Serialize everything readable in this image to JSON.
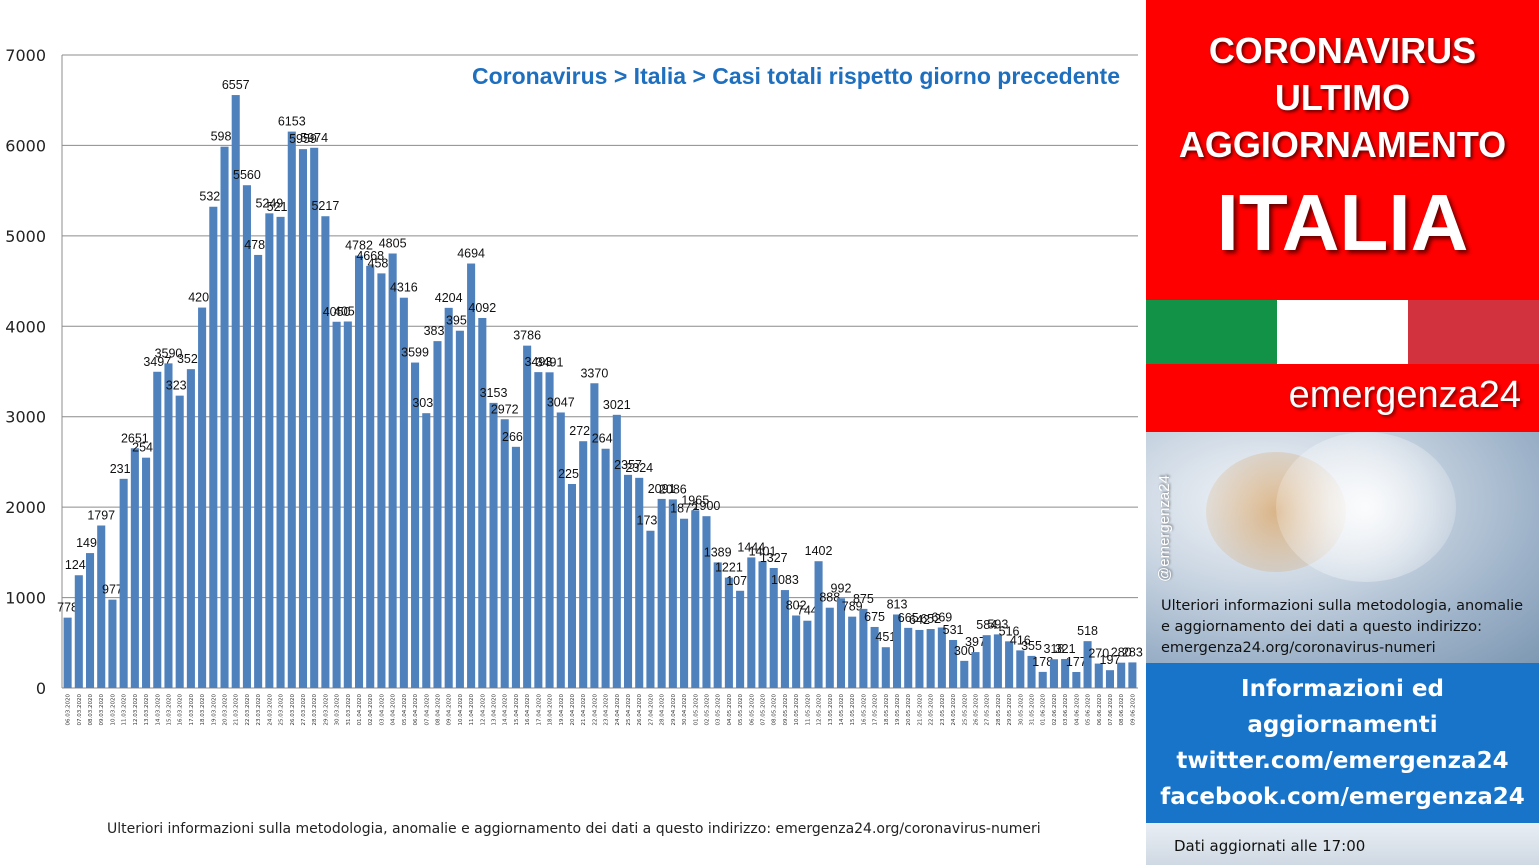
{
  "chart_data": {
    "type": "bar",
    "title": "Coronavirus > Italia > Casi totali rispetto giorno precedente",
    "ylim": [
      0,
      7000
    ],
    "yticks": [
      0,
      1000,
      2000,
      3000,
      4000,
      5000,
      6000,
      7000
    ],
    "grid": true,
    "color": "#4f81bd",
    "categories": [
      "06.03.2020",
      "07.03.2020",
      "08.03.2020",
      "09.03.2020",
      "10.03.2020",
      "11.03.2020",
      "12.03.2020",
      "13.03.2020",
      "14.03.2020",
      "15.03.2020",
      "16.03.2020",
      "17.03.2020",
      "18.03.2020",
      "19.03.2020",
      "20.03.2020",
      "21.03.2020",
      "22.03.2020",
      "23.03.2020",
      "24.03.2020",
      "25.03.2020",
      "26.03.2020",
      "27.03.2020",
      "28.03.2020",
      "29.03.2020",
      "30.03.2020",
      "31.03.2020",
      "01.04.2020",
      "02.04.2020",
      "03.04.2020",
      "04.04.2020",
      "05.04.2020",
      "06.04.2020",
      "07.04.2020",
      "08.04.2020",
      "09.04.2020",
      "10.04.2020",
      "11.04.2020",
      "12.04.2020",
      "13.04.2020",
      "14.04.2020",
      "15.04.2020",
      "16.04.2020",
      "17.04.2020",
      "18.04.2020",
      "19.04.2020",
      "20.04.2020",
      "21.04.2020",
      "22.04.2020",
      "23.04.2020",
      "24.04.2020",
      "25.04.2020",
      "26.04.2020",
      "27.04.2020",
      "28.04.2020",
      "29.04.2020",
      "30.04.2020",
      "01.05.2020",
      "02.05.2020",
      "03.05.2020",
      "04.05.2020",
      "05.05.2020",
      "06.05.2020",
      "07.05.2020",
      "08.05.2020",
      "09.05.2020",
      "10.05.2020",
      "11.05.2020",
      "12.05.2020",
      "13.05.2020",
      "14.05.2020",
      "15.05.2020",
      "16.05.2020",
      "17.05.2020",
      "18.05.2020",
      "19.05.2020",
      "20.05.2020",
      "21.05.2020",
      "22.05.2020",
      "23.05.2020",
      "24.05.2020",
      "25.05.2020",
      "26.05.2020",
      "27.05.2020",
      "28.05.2020",
      "29.05.2020",
      "30.05.2020",
      "31.05.2020",
      "01.06.2020",
      "02.06.2020",
      "03.06.2020",
      "04.06.2020",
      "05.06.2020",
      "06.06.2020",
      "07.06.2020",
      "08.06.2020",
      "09.06.2020"
    ],
    "values": [
      778,
      1247,
      1492,
      1797,
      977,
      2313,
      2651,
      2547,
      3497,
      3590,
      3233,
      3526,
      4207,
      5322,
      5986,
      6557,
      5560,
      4789,
      5249,
      5210,
      6153,
      5959,
      5974,
      5217,
      4050,
      4053,
      4782,
      4668,
      4585,
      4805,
      4316,
      3599,
      3039,
      3836,
      4204,
      3951,
      4694,
      4092,
      3153,
      2972,
      2667,
      3786,
      3493,
      3491,
      3047,
      2256,
      2729,
      3370,
      2646,
      3021,
      2357,
      2324,
      1739,
      2091,
      2086,
      1872,
      1965,
      1900,
      1389,
      1221,
      1075,
      1444,
      1401,
      1327,
      1083,
      802,
      744,
      1402,
      888,
      992,
      789,
      875,
      675,
      451,
      813,
      665,
      642,
      652,
      669,
      531,
      300,
      397,
      584,
      593,
      516,
      416,
      355,
      178,
      318,
      321,
      177,
      518,
      270,
      197,
      280,
      283
    ]
  },
  "footnote": "Ulteriori informazioni sulla metodologia, anomalie e aggiornamento dei dati a questo indirizzo: emergenza24.org/coronavirus-numeri",
  "panel": {
    "line1": "CORONAVIRUS",
    "line2": "ULTIMO",
    "line3": "AGGIORNAMENTO",
    "country": "ITALIA",
    "brand": "emergenza24",
    "handle": "@emergenza24",
    "info_line1": "Ulteriori informazioni sulla metodologia, anomalie",
    "info_line2": "e aggiornamento dei dati a questo indirizzo:",
    "info_line3": "emergenza24.org/coronavirus-numeri",
    "social1": "Informazioni ed",
    "social2": "aggiornamenti",
    "social3": "twitter.com/emergenza24",
    "social4": "facebook.com/emergenza24",
    "updated": "Dati aggiornati alle 17:00",
    "flag_colors": [
      "#129247",
      "#ffffff",
      "#d2323d"
    ]
  }
}
